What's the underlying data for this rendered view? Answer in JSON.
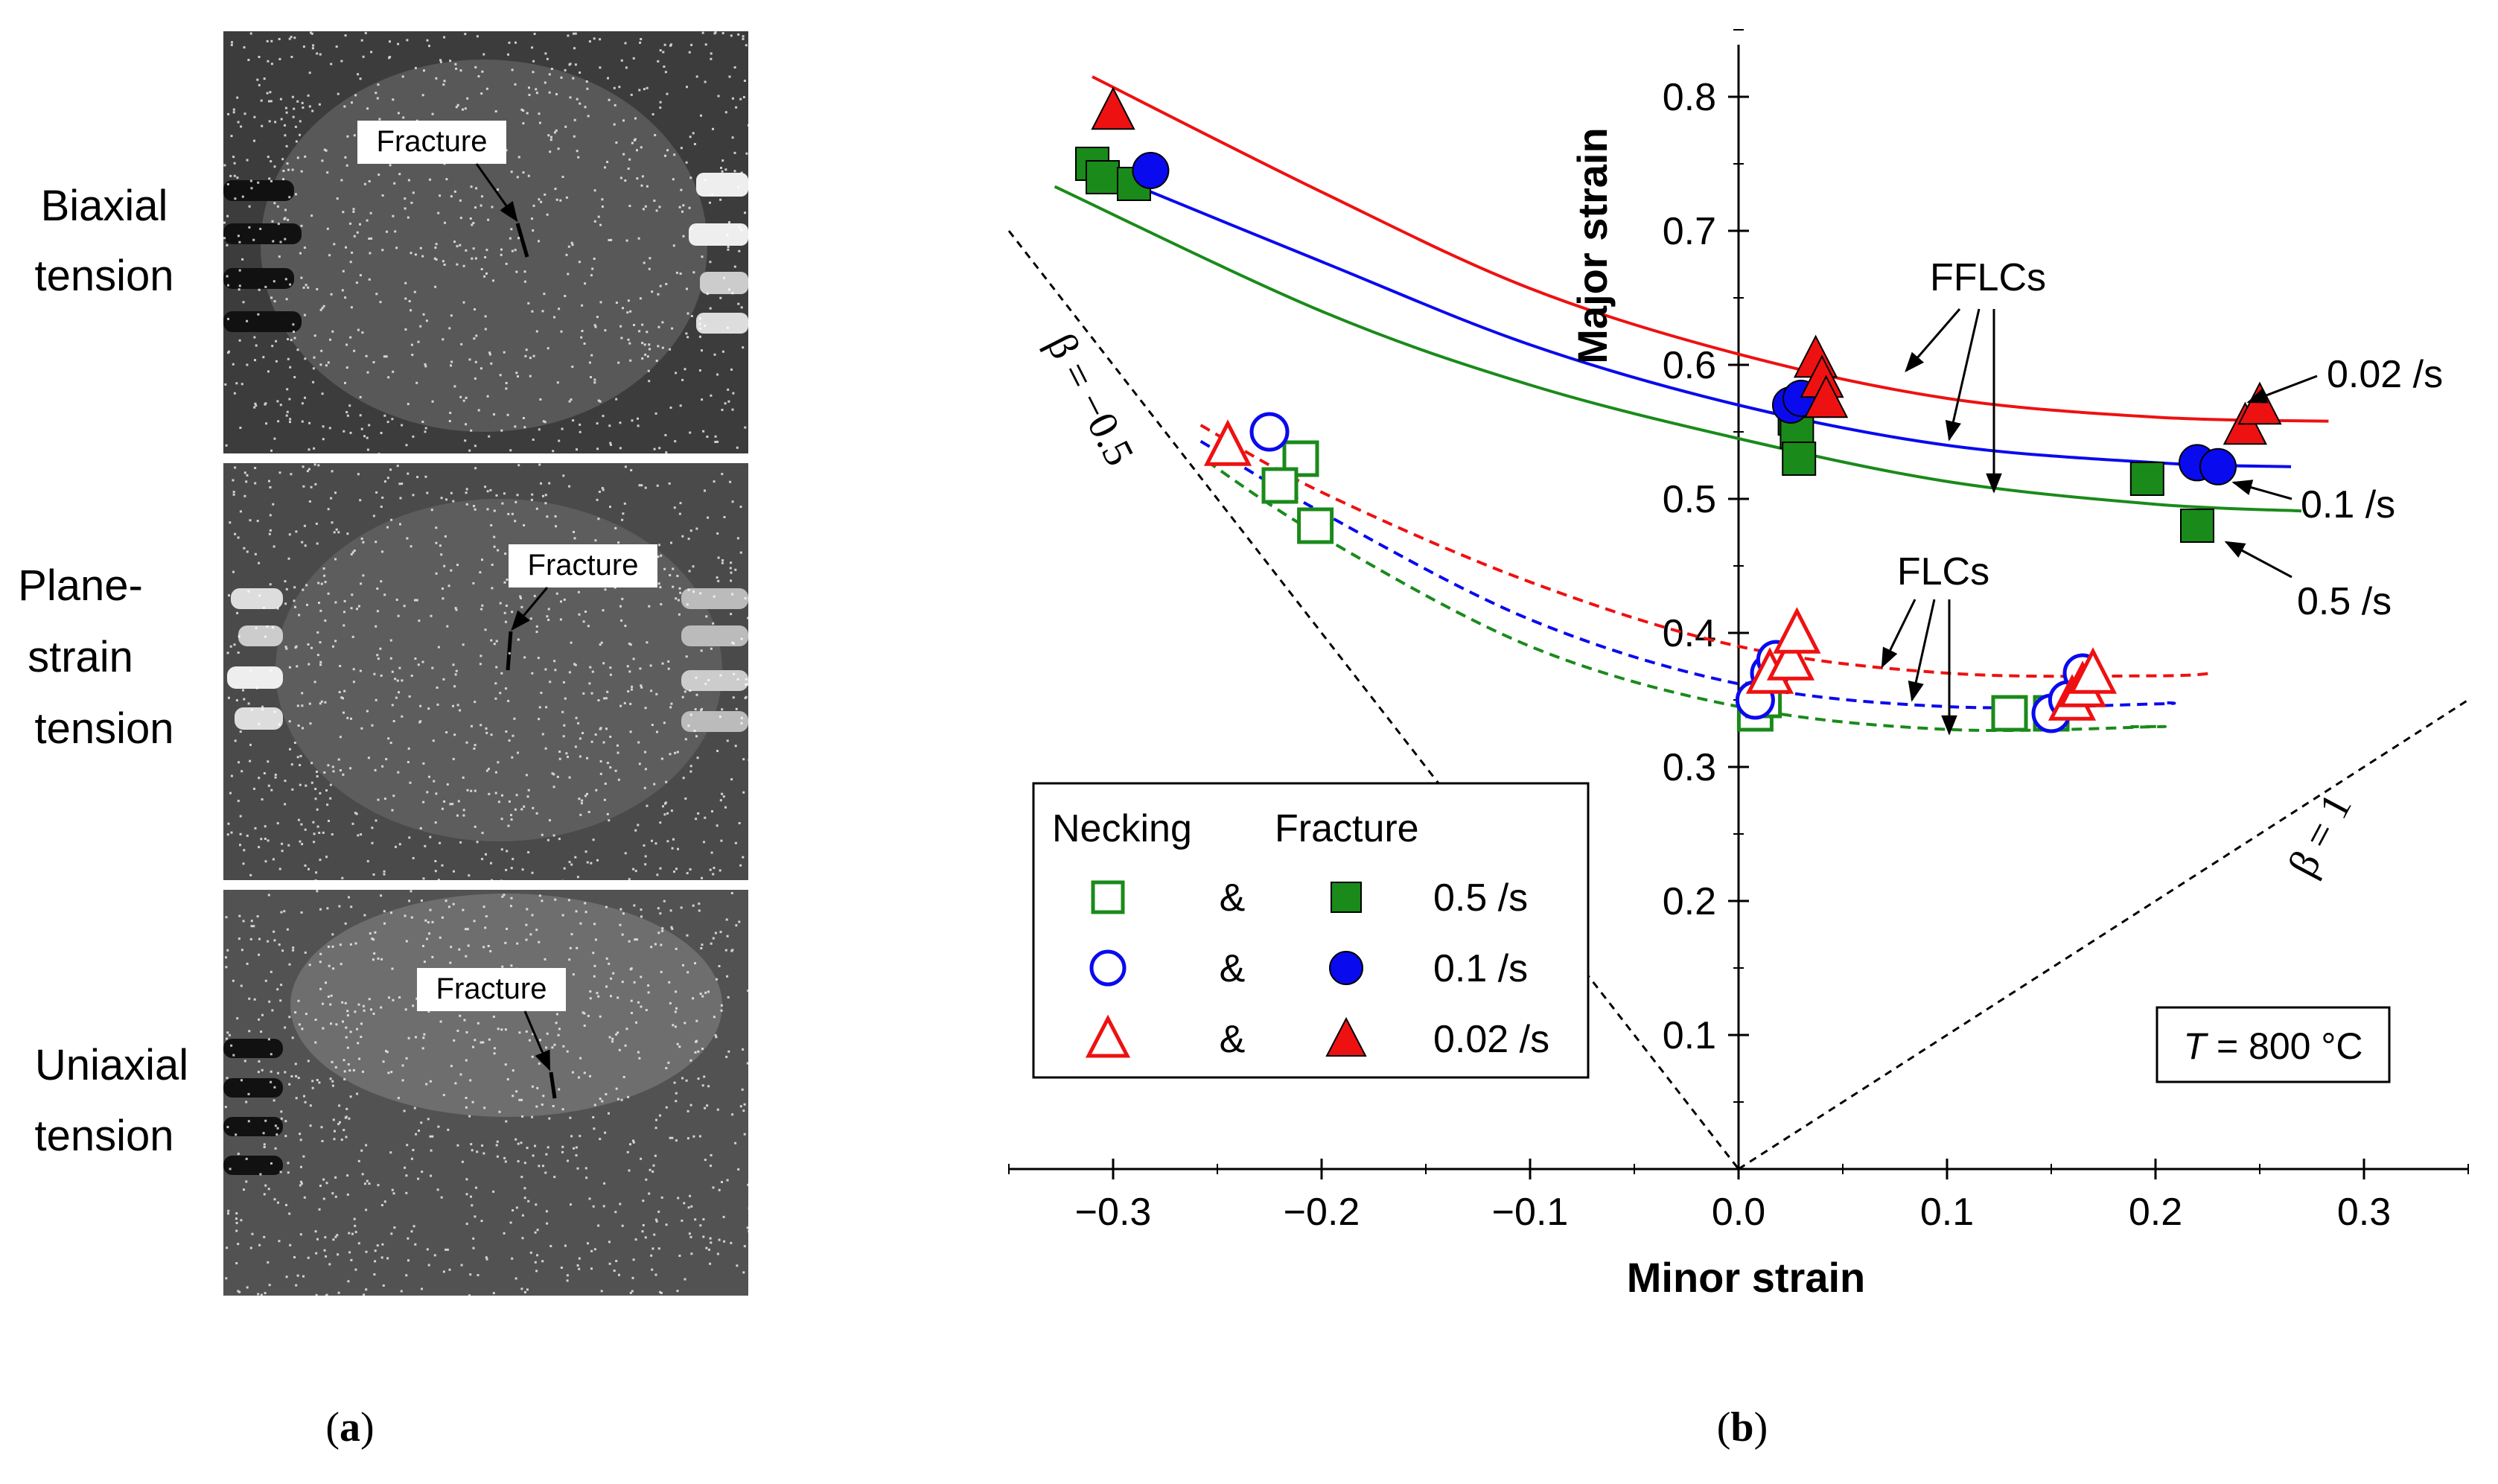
{
  "panel_a": {
    "caption": "(a)",
    "photos": [
      {
        "label_lines": [
          "Biaxial",
          "tension"
        ],
        "annotation": "Fracture"
      },
      {
        "label_lines": [
          "Plane-",
          "strain",
          "tension"
        ],
        "annotation": "Fracture"
      },
      {
        "label_lines": [
          "Uniaxial",
          "tension"
        ],
        "annotation": "Fracture"
      }
    ]
  },
  "panel_b": {
    "caption": "(b)",
    "annotations": {
      "fflcs": "FFLCs",
      "flcs": "FLCs",
      "beta_neg": "β = −0.5",
      "beta_pos": "β = 1",
      "temp_T": "T",
      "temp_rest": " = 800 °C"
    },
    "legend": {
      "necking_header": "Necking",
      "fracture_header": "Fracture",
      "amp": "&",
      "rows": [
        {
          "label": "0.5 /s",
          "open_marker": "open-square",
          "filled_marker": "filled-square",
          "color": "#1a8a1a"
        },
        {
          "label": "0.1 /s",
          "open_marker": "open-circle",
          "filled_marker": "filled-circle",
          "color": "#0a0aee"
        },
        {
          "label": "0.02 /s",
          "open_marker": "open-triangle",
          "filled_marker": "filled-triangle",
          "color": "#ee1111"
        }
      ]
    }
  },
  "chart_data": {
    "type": "scatter",
    "title": "",
    "xlabel": "Minor strain",
    "ylabel": "Major strain",
    "xlim": [
      -0.35,
      0.35
    ],
    "ylim": [
      0,
      0.85
    ],
    "xticks": [
      -0.3,
      -0.2,
      -0.1,
      0.0,
      0.1,
      0.2,
      0.3
    ],
    "xtick_labels": [
      "−0.3",
      "−0.2",
      "−0.1",
      "0.0",
      "0.1",
      "0.2",
      "0.3"
    ],
    "yticks": [
      0.1,
      0.2,
      0.3,
      0.4,
      0.5,
      0.6,
      0.7,
      0.8
    ],
    "ytick_labels": [
      "0.1",
      "0.2",
      "0.3",
      "0.4",
      "0.5",
      "0.6",
      "0.7",
      "0.8"
    ],
    "grid": false,
    "legend_position": "bottom-left",
    "series": [
      {
        "name": "Necking 0.5 /s",
        "marker": "open-square",
        "color": "#1a8a1a",
        "x": [
          -0.21,
          -0.22,
          -0.203,
          0.008,
          0.012,
          0.13,
          0.15
        ],
        "y": [
          0.53,
          0.51,
          0.48,
          0.34,
          0.35,
          0.34,
          0.34
        ]
      },
      {
        "name": "Necking 0.1 /s",
        "marker": "open-circle",
        "color": "#0a0aee",
        "x": [
          -0.225,
          0.008,
          0.015,
          0.018,
          0.15,
          0.158,
          0.165
        ],
        "y": [
          0.55,
          0.35,
          0.37,
          0.38,
          0.34,
          0.35,
          0.37
        ]
      },
      {
        "name": "Necking 0.02 /s",
        "marker": "open-triangle",
        "color": "#ee1111",
        "x": [
          -0.245,
          0.015,
          0.025,
          0.028,
          0.16,
          0.165,
          0.17
        ],
        "y": [
          0.54,
          0.37,
          0.38,
          0.4,
          0.35,
          0.36,
          0.37
        ]
      },
      {
        "name": "Fracture 0.5 /s",
        "marker": "filled-square",
        "color": "#1a8a1a",
        "x": [
          -0.31,
          -0.305,
          -0.29,
          0.027,
          0.028,
          0.029,
          0.196,
          0.22
        ],
        "y": [
          0.75,
          0.74,
          0.735,
          0.56,
          0.55,
          0.53,
          0.515,
          0.48
        ]
      },
      {
        "name": "Fracture 0.1 /s",
        "marker": "filled-circle",
        "color": "#0a0aee",
        "x": [
          -0.282,
          0.025,
          0.03,
          0.22,
          0.23
        ],
        "y": [
          0.745,
          0.57,
          0.575,
          0.527,
          0.524
        ]
      },
      {
        "name": "Fracture 0.02 /s",
        "marker": "filled-triangle",
        "color": "#ee1111",
        "x": [
          -0.3,
          0.037,
          0.04,
          0.042,
          0.243,
          0.25
        ],
        "y": [
          0.79,
          0.605,
          0.59,
          0.575,
          0.555,
          0.57
        ]
      }
    ],
    "curves": [
      {
        "name": "FFLC 0.02 /s",
        "style": "solid",
        "color": "#ee1111",
        "x": [
          -0.31,
          -0.2,
          -0.1,
          0.0,
          0.1,
          0.2,
          0.283
        ],
        "y": [
          0.815,
          0.729,
          0.657,
          0.608,
          0.575,
          0.561,
          0.558
        ]
      },
      {
        "name": "FFLC 0.1 /s",
        "style": "solid",
        "color": "#0a0aee",
        "x": [
          -0.31,
          -0.2,
          -0.1,
          0.0,
          0.1,
          0.2,
          0.265
        ],
        "y": [
          0.747,
          0.677,
          0.615,
          0.57,
          0.54,
          0.527,
          0.524
        ]
      },
      {
        "name": "FFLC 0.5 /s",
        "style": "solid",
        "color": "#1a8a1a",
        "x": [
          -0.328,
          -0.2,
          -0.1,
          0.0,
          0.1,
          0.2,
          0.27
        ],
        "y": [
          0.733,
          0.64,
          0.585,
          0.545,
          0.513,
          0.496,
          0.491
        ]
      },
      {
        "name": "FLC 0.02 /s",
        "style": "dashed",
        "color": "#ee1111",
        "x": [
          -0.258,
          -0.2,
          -0.1,
          0.0,
          0.1,
          0.2,
          0.228
        ],
        "y": [
          0.555,
          0.505,
          0.438,
          0.39,
          0.37,
          0.368,
          0.37
        ]
      },
      {
        "name": "FLC 0.1 /s",
        "style": "dashed",
        "color": "#0a0aee",
        "x": [
          -0.258,
          -0.2,
          -0.1,
          0.0,
          0.1,
          0.2,
          0.205
        ],
        "y": [
          0.543,
          0.49,
          0.41,
          0.362,
          0.345,
          0.347,
          0.348
        ]
      },
      {
        "name": "FLC 0.5 /s",
        "style": "dashed",
        "color": "#1a8a1a",
        "x": [
          -0.255,
          -0.2,
          -0.1,
          0.0,
          0.1,
          0.2,
          0.188
        ],
        "y": [
          0.528,
          0.472,
          0.39,
          0.345,
          0.328,
          0.33,
          0.33
        ]
      }
    ],
    "reference_lines": [
      {
        "name": "beta = -0.5",
        "style": "dashed",
        "color": "#000000",
        "x": [
          -0.35,
          0.0
        ],
        "y": [
          0.7,
          0.0
        ]
      },
      {
        "name": "beta = 1",
        "style": "dashed",
        "color": "#000000",
        "x": [
          0.0,
          0.35
        ],
        "y": [
          0.0,
          0.35
        ]
      }
    ],
    "rate_labels": [
      {
        "text": "0.02 /s"
      },
      {
        "text": "0.1 /s"
      },
      {
        "text": "0.5 /s"
      }
    ]
  }
}
